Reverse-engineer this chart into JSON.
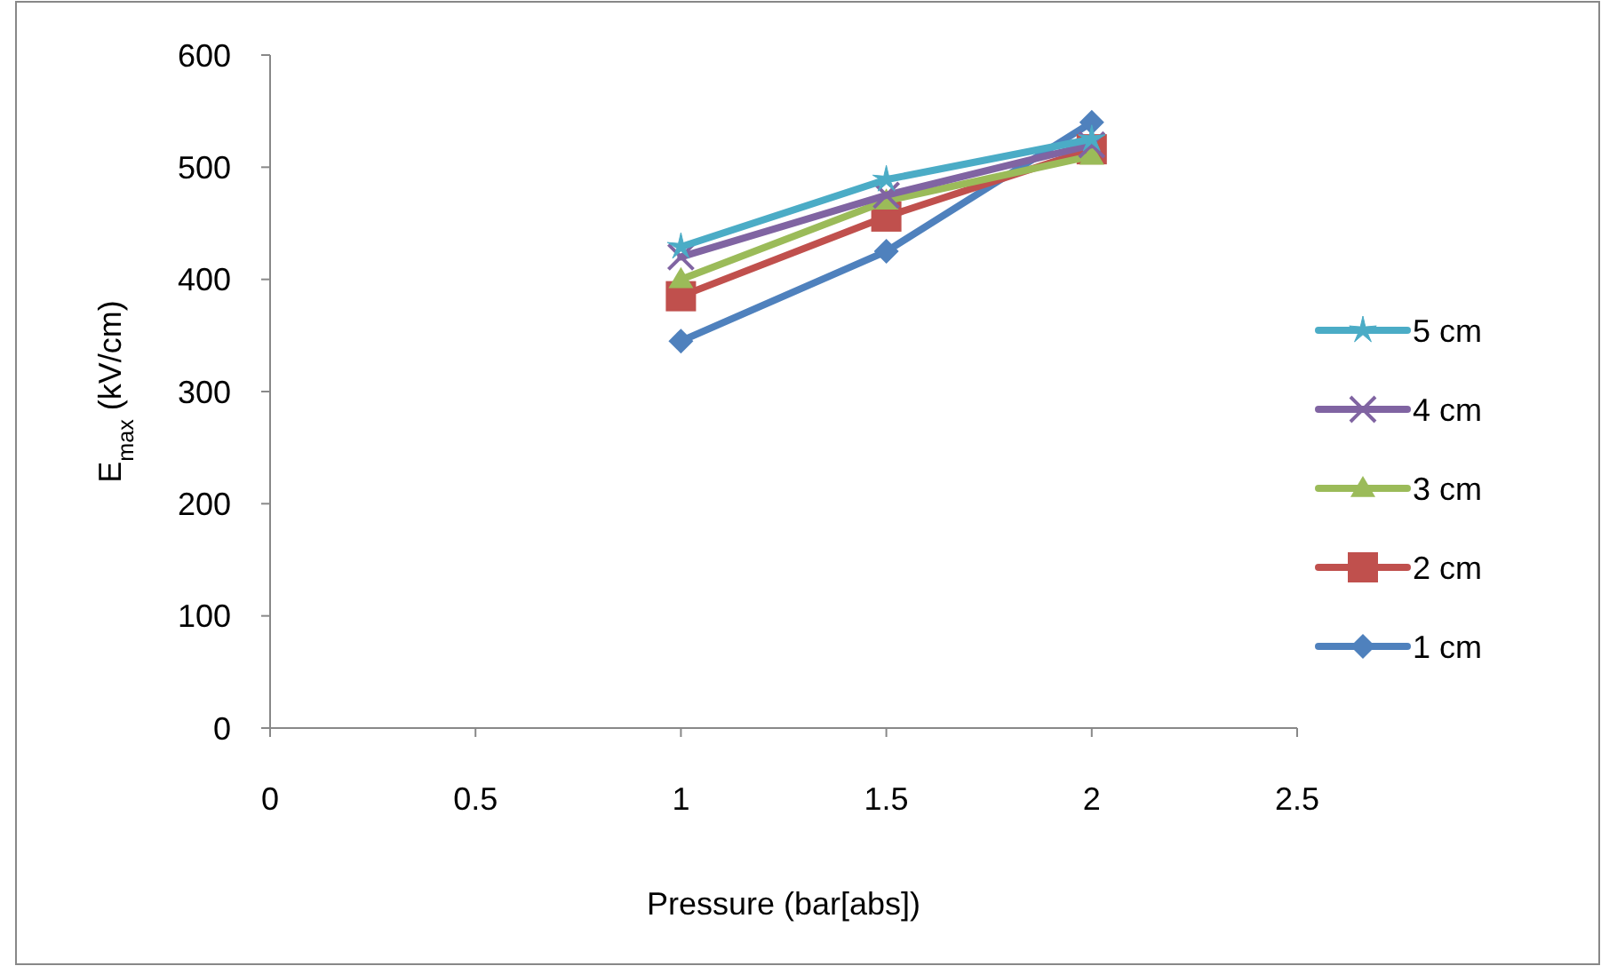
{
  "chart_data": {
    "type": "line",
    "xlabel": "Pressure (bar[abs])",
    "ylabel": "E$_{max}$ (kV/cm)",
    "x": [
      1,
      1.5,
      2
    ],
    "xlim": [
      0,
      2.5
    ],
    "xticks": [
      0,
      0.5,
      1,
      1.5,
      2,
      2.5
    ],
    "ylim": [
      0,
      600
    ],
    "yticks": [
      0,
      100,
      200,
      300,
      400,
      500,
      600
    ],
    "grid": false,
    "legend": "right",
    "series": [
      {
        "name": "5 cm",
        "color": "#4bacc6",
        "marker": "star",
        "values": [
          429,
          489,
          525
        ]
      },
      {
        "name": "4 cm",
        "color": "#8064a2",
        "marker": "cross",
        "values": [
          420,
          475,
          520
        ]
      },
      {
        "name": "3 cm",
        "color": "#9bbb59",
        "marker": "triangle",
        "values": [
          400,
          470,
          510
        ]
      },
      {
        "name": "2 cm",
        "color": "#c0504d",
        "marker": "square",
        "values": [
          385,
          456,
          516
        ]
      },
      {
        "name": "1 cm",
        "color": "#4f81bd",
        "marker": "diamond",
        "values": [
          345,
          425,
          540
        ]
      }
    ]
  }
}
